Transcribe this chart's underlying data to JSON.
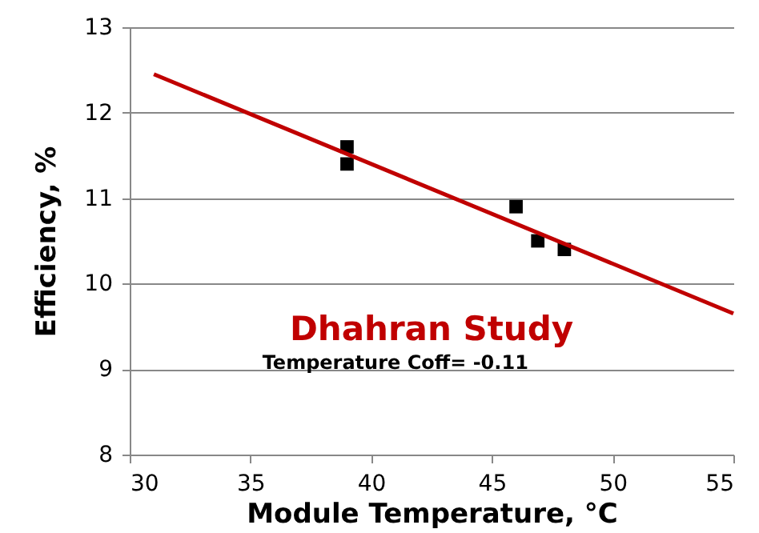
{
  "chart_data": {
    "type": "scatter",
    "xlabel": "Module Temperature, °C",
    "ylabel": "Efficiency, %",
    "xlim": [
      30,
      55
    ],
    "xticks": [
      30,
      35,
      40,
      45,
      50,
      55
    ],
    "ylim": [
      8,
      13
    ],
    "yticks": [
      8,
      9,
      10,
      11,
      12,
      13
    ],
    "grid": "y",
    "series": [
      {
        "marker": "square",
        "color": "#000000",
        "x": [
          39,
          39,
          46,
          46.9,
          48
        ],
        "values": [
          11.6,
          11.4,
          10.9,
          10.5,
          10.4
        ]
      },
      {
        "type": "line",
        "color": "#c00000",
        "x": [
          31,
          55
        ],
        "values": [
          12.45,
          9.65
        ]
      }
    ],
    "annotations": [
      "Dhahran Study",
      "Temperature Coff= -0.11"
    ]
  }
}
